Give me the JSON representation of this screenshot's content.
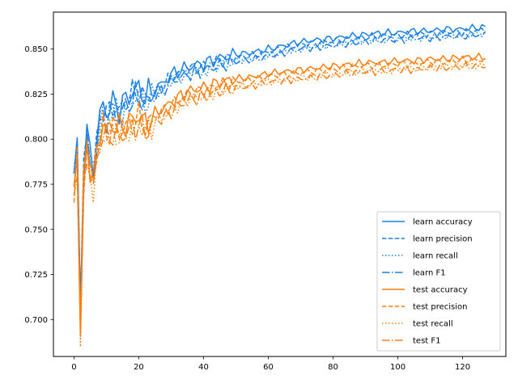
{
  "chart_data": {
    "type": "line",
    "title": "",
    "xlabel": "",
    "ylabel": "",
    "xlim": [
      -6.35,
      133.35
    ],
    "ylim": [
      0.6795,
      0.8705
    ],
    "xticks": [
      0,
      20,
      40,
      60,
      80,
      100,
      120
    ],
    "yticks": [
      0.7,
      0.725,
      0.75,
      0.775,
      0.8,
      0.825,
      0.85
    ],
    "grid": false,
    "legend_position": "lower-right",
    "colors": {
      "learn": "#1a80e6",
      "test": "#ff7f0e"
    },
    "anchors": {
      "learn": {
        "x": [
          0,
          1,
          2,
          3,
          4,
          5,
          6,
          7,
          8,
          9,
          10,
          12,
          14,
          16,
          18,
          20,
          22,
          24,
          26,
          28,
          30,
          35,
          40,
          45,
          50,
          55,
          60,
          65,
          70,
          75,
          80,
          85,
          90,
          95,
          100,
          105,
          110,
          115,
          120,
          125,
          127
        ],
        "y": [
          0.779,
          0.795,
          0.705,
          0.783,
          0.803,
          0.788,
          0.783,
          0.797,
          0.81,
          0.818,
          0.813,
          0.818,
          0.815,
          0.82,
          0.824,
          0.826,
          0.822,
          0.824,
          0.827,
          0.83,
          0.834,
          0.838,
          0.84,
          0.843,
          0.845,
          0.846,
          0.848,
          0.85,
          0.852,
          0.853,
          0.854,
          0.855,
          0.856,
          0.857,
          0.857,
          0.858,
          0.858,
          0.859,
          0.859,
          0.86,
          0.86
        ]
      },
      "test": {
        "x": [
          0,
          1,
          2,
          3,
          4,
          5,
          6,
          7,
          8,
          9,
          10,
          12,
          14,
          16,
          18,
          20,
          22,
          24,
          26,
          28,
          30,
          35,
          40,
          45,
          50,
          55,
          60,
          65,
          70,
          75,
          80,
          85,
          90,
          95,
          100,
          105,
          110,
          115,
          120,
          125,
          127
        ],
        "y": [
          0.772,
          0.79,
          0.69,
          0.775,
          0.795,
          0.782,
          0.775,
          0.79,
          0.8,
          0.806,
          0.802,
          0.806,
          0.803,
          0.806,
          0.808,
          0.811,
          0.806,
          0.81,
          0.813,
          0.815,
          0.818,
          0.824,
          0.826,
          0.829,
          0.831,
          0.832,
          0.834,
          0.835,
          0.836,
          0.837,
          0.838,
          0.839,
          0.84,
          0.84,
          0.841,
          0.841,
          0.842,
          0.842,
          0.843,
          0.843,
          0.843
        ]
      }
    },
    "series": [
      {
        "name": "learn accuracy",
        "group": "learn",
        "style": "solid",
        "offset": 0.002
      },
      {
        "name": "learn precision",
        "group": "learn",
        "style": "dashed",
        "offset": 0.0005
      },
      {
        "name": "learn recall",
        "group": "learn",
        "style": "dotted",
        "offset": -0.0015
      },
      {
        "name": "learn F1",
        "group": "learn",
        "style": "dashdot",
        "offset": -0.002
      },
      {
        "name": "test accuracy",
        "group": "test",
        "style": "solid",
        "offset": 0.0025
      },
      {
        "name": "test precision",
        "group": "test",
        "style": "dashed",
        "offset": 0.001
      },
      {
        "name": "test recall",
        "group": "test",
        "style": "dotted",
        "offset": -0.002
      },
      {
        "name": "test F1",
        "group": "test",
        "style": "dashdot",
        "offset": -0.0025
      }
    ]
  }
}
